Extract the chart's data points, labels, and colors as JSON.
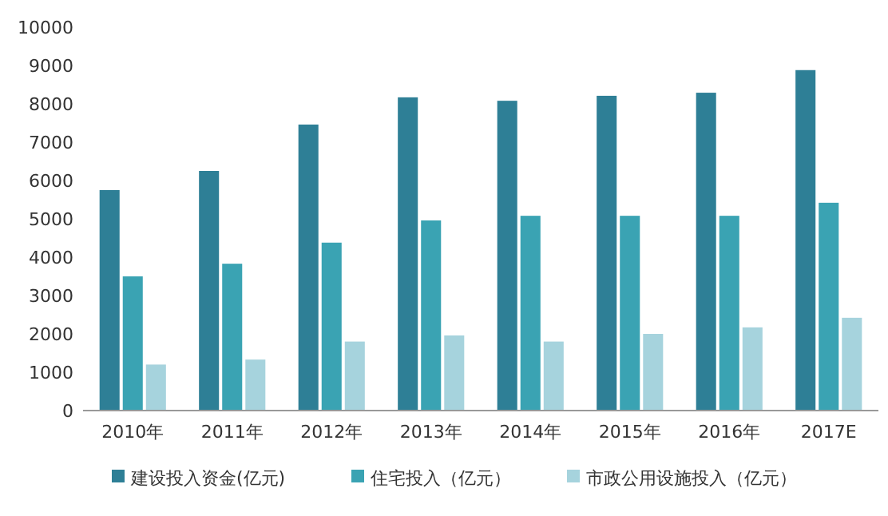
{
  "chart_data": {
    "type": "bar",
    "categories": [
      "2010年",
      "2011年",
      "2012年",
      "2013年",
      "2014年",
      "2015年",
      "2016年",
      "2017E"
    ],
    "series": [
      {
        "name": "建设投入资金(亿元)",
        "color": "#2e7f96",
        "values": [
          5750,
          6250,
          7460,
          8170,
          8080,
          8210,
          8290,
          8880
        ]
      },
      {
        "name": "住宅投入（亿元）",
        "color": "#3aa3b3",
        "values": [
          3500,
          3830,
          4380,
          4960,
          5080,
          5080,
          5080,
          5420
        ]
      },
      {
        "name": "市政公用设施投入（亿元）",
        "color": "#a6d3dd",
        "values": [
          1200,
          1330,
          1800,
          1960,
          1800,
          2000,
          2170,
          2420
        ]
      }
    ],
    "ylim": [
      0,
      10000
    ],
    "yticks": [
      0,
      1000,
      2000,
      3000,
      4000,
      5000,
      6000,
      7000,
      8000,
      9000,
      10000
    ],
    "grid": false,
    "legend": "bottom"
  }
}
